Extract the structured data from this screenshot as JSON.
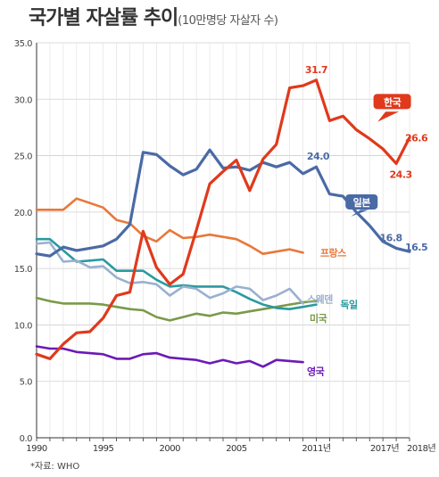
{
  "title": "국가별 자살률 추이",
  "subtitle": "(10만명당 자살자 수)",
  "source": "*자료: WHO",
  "chart_data": {
    "type": "line",
    "ylim": [
      0,
      35
    ],
    "xlim": [
      1990,
      2018
    ],
    "yticks": [
      "0.0",
      "5.0",
      "10.0",
      "15.0",
      "20.0",
      "25.0",
      "30.0",
      "35.0"
    ],
    "ytick_values": [
      0,
      5,
      10,
      15,
      20,
      25,
      30,
      35
    ],
    "xticks": [
      {
        "value": 1990,
        "label": "1990"
      },
      {
        "value": 1995,
        "label": "1995"
      },
      {
        "value": 2000,
        "label": "2000"
      },
      {
        "value": 2005,
        "label": "2005"
      },
      {
        "value": 2011,
        "label": "2011년"
      },
      {
        "value": 2017,
        "label": "2017년"
      },
      {
        "value": 2018,
        "label": "2018년"
      }
    ],
    "grid": true,
    "series": [
      {
        "name": "한국",
        "color": "#e0391c",
        "label_style": "badge",
        "x": [
          1990,
          1991,
          1992,
          1993,
          1994,
          1995,
          1996,
          1997,
          1998,
          1999,
          2000,
          2001,
          2002,
          2003,
          2004,
          2005,
          2006,
          2007,
          2008,
          2009,
          2010,
          2011,
          2012,
          2013,
          2014,
          2015,
          2016,
          2017,
          2018
        ],
        "values": [
          7.4,
          7.0,
          8.3,
          9.3,
          9.4,
          10.6,
          12.6,
          12.9,
          18.3,
          15.1,
          13.6,
          14.5,
          18.4,
          22.5,
          23.6,
          24.6,
          21.9,
          24.7,
          26.0,
          31.0,
          31.2,
          31.7,
          28.1,
          28.5,
          27.3,
          26.5,
          25.6,
          24.3,
          26.6
        ]
      },
      {
        "name": "일본",
        "color": "#4a6aa5",
        "label_style": "badge",
        "x": [
          1990,
          1991,
          1992,
          1993,
          1994,
          1995,
          1996,
          1997,
          1998,
          1999,
          2000,
          2001,
          2002,
          2003,
          2004,
          2005,
          2006,
          2007,
          2008,
          2009,
          2010,
          2011,
          2012,
          2013,
          2014,
          2015,
          2016,
          2017,
          2018
        ],
        "values": [
          16.3,
          16.1,
          16.9,
          16.6,
          16.8,
          17.0,
          17.6,
          18.9,
          25.3,
          25.1,
          24.1,
          23.3,
          23.8,
          25.5,
          23.9,
          24.0,
          23.7,
          24.4,
          24.0,
          24.4,
          23.4,
          24.0,
          21.6,
          21.4,
          20.0,
          18.8,
          17.4,
          16.8,
          16.5
        ]
      },
      {
        "name": "프랑스",
        "color": "#e8783a",
        "label_style": "text",
        "x": [
          1990,
          1991,
          1992,
          1993,
          1994,
          1995,
          1996,
          1997,
          1998,
          1999,
          2000,
          2001,
          2002,
          2003,
          2004,
          2005,
          2006,
          2007,
          2008,
          2009,
          2010
        ],
        "values": [
          20.2,
          20.2,
          20.2,
          21.2,
          20.8,
          20.4,
          19.3,
          19.0,
          17.9,
          17.4,
          18.4,
          17.7,
          17.8,
          18.0,
          17.8,
          17.6,
          17.0,
          16.3,
          16.5,
          16.7,
          16.4
        ]
      },
      {
        "name": "스웨덴",
        "color": "#9ab0cf",
        "label_style": "text",
        "x": [
          1990,
          1991,
          1992,
          1993,
          1994,
          1995,
          1996,
          1997,
          1998,
          1999,
          2000,
          2001,
          2002,
          2003,
          2004,
          2005,
          2006,
          2007,
          2008,
          2009,
          2010
        ],
        "values": [
          17.2,
          17.3,
          15.6,
          15.7,
          15.1,
          15.2,
          14.2,
          13.7,
          13.8,
          13.6,
          12.6,
          13.4,
          13.2,
          12.4,
          12.8,
          13.4,
          13.2,
          12.2,
          12.6,
          13.2,
          11.9
        ]
      },
      {
        "name": "독일",
        "color": "#2a9aa0",
        "label_style": "text",
        "x": [
          1990,
          1991,
          1992,
          1993,
          1994,
          1995,
          1996,
          1997,
          1998,
          1999,
          2000,
          2001,
          2002,
          2003,
          2004,
          2005,
          2006,
          2007,
          2008,
          2009,
          2010,
          2011
        ],
        "values": [
          17.6,
          17.6,
          16.6,
          15.6,
          15.7,
          15.8,
          14.8,
          14.8,
          14.8,
          14.0,
          13.4,
          13.5,
          13.4,
          13.4,
          13.4,
          12.9,
          12.3,
          11.8,
          11.5,
          11.4,
          11.6,
          11.8
        ]
      },
      {
        "name": "미국",
        "color": "#7a9a4a",
        "label_style": "text",
        "x": [
          1990,
          1991,
          1992,
          1993,
          1994,
          1995,
          1996,
          1997,
          1998,
          1999,
          2000,
          2001,
          2002,
          2003,
          2004,
          2005,
          2006,
          2007,
          2008,
          2009,
          2010,
          2011
        ],
        "values": [
          12.4,
          12.1,
          11.9,
          11.9,
          11.9,
          11.8,
          11.6,
          11.4,
          11.3,
          10.7,
          10.4,
          10.7,
          11.0,
          10.8,
          11.1,
          11.0,
          11.2,
          11.4,
          11.6,
          11.8,
          12.0,
          12.1
        ]
      },
      {
        "name": "영국",
        "color": "#6b1ab5",
        "label_style": "text",
        "x": [
          1990,
          1991,
          1992,
          1993,
          1994,
          1995,
          1996,
          1997,
          1998,
          1999,
          2000,
          2001,
          2002,
          2003,
          2004,
          2005,
          2006,
          2007,
          2008,
          2009,
          2010
        ],
        "values": [
          8.1,
          7.9,
          7.9,
          7.6,
          7.5,
          7.4,
          7.0,
          7.0,
          7.4,
          7.5,
          7.1,
          7.0,
          6.9,
          6.6,
          6.9,
          6.6,
          6.8,
          6.3,
          6.9,
          6.8,
          6.7
        ]
      }
    ],
    "data_labels": [
      {
        "series": "한국",
        "x": 2011,
        "text": "31.7"
      },
      {
        "series": "한국",
        "x": 2017,
        "text": "24.3"
      },
      {
        "series": "한국",
        "x": 2018,
        "text": "26.6"
      },
      {
        "series": "일본",
        "x": 2011,
        "text": "24.0"
      },
      {
        "series": "일본",
        "x": 2017,
        "text": "16.8"
      },
      {
        "series": "일본",
        "x": 2018,
        "text": "16.5"
      }
    ]
  }
}
